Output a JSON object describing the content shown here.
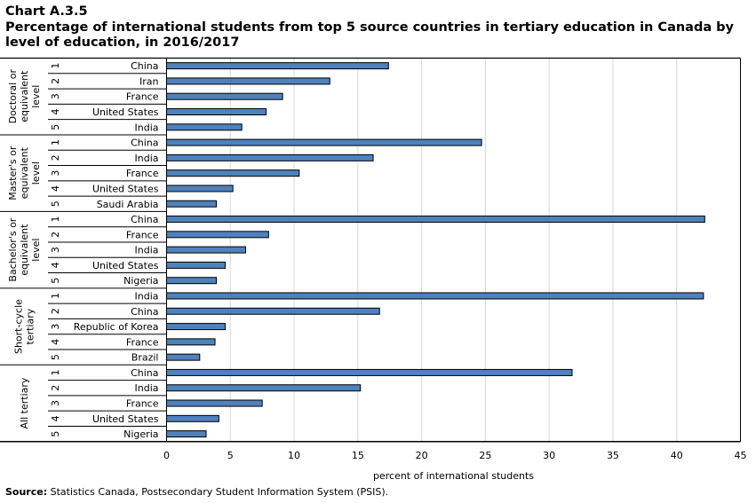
{
  "header": {
    "chart_id": "Chart A.3.5",
    "title": "Percentage of international  students from top 5 source countries in tertiary education in Canada by level of education, in 2016/2017"
  },
  "footer": {
    "source_label": "Source:",
    "source_text": "Statistics Canada, Postsecondary Student Information System (PSIS)."
  },
  "chart_data": {
    "type": "bar",
    "orientation": "horizontal",
    "title": "Percentage of international  students from top 5 source countries in tertiary education in Canada by level of education, in 2016/2017",
    "xlabel": "percent of international students",
    "ylabel": "",
    "xlim": [
      0,
      45
    ],
    "xticks": [
      0,
      5,
      10,
      15,
      20,
      25,
      30,
      35,
      40,
      45
    ],
    "grid": true,
    "bar_color": "#4f81bd",
    "groups": [
      {
        "label": "Doctoral or equivalent level",
        "label_lines": [
          "Doctoral or",
          "equivalent",
          "level"
        ],
        "items": [
          {
            "rank": "1",
            "country": "China",
            "value": 17.4
          },
          {
            "rank": "2",
            "country": "Iran",
            "value": 12.8
          },
          {
            "rank": "3",
            "country": "France",
            "value": 9.1
          },
          {
            "rank": "4",
            "country": "United States",
            "value": 7.8
          },
          {
            "rank": "5",
            "country": "India",
            "value": 5.9
          }
        ]
      },
      {
        "label": "Master's or equivalent level",
        "label_lines": [
          "Master's or",
          "equivalent",
          "level"
        ],
        "items": [
          {
            "rank": "1",
            "country": "China",
            "value": 24.7
          },
          {
            "rank": "2",
            "country": "India",
            "value": 16.2
          },
          {
            "rank": "3",
            "country": "France",
            "value": 10.4
          },
          {
            "rank": "4",
            "country": "United States",
            "value": 5.2
          },
          {
            "rank": "5",
            "country": "Saudi Arabia",
            "value": 3.9
          }
        ]
      },
      {
        "label": "Bachelor's or equivalent level",
        "label_lines": [
          "Bachelor's or",
          "equivalent",
          "level"
        ],
        "items": [
          {
            "rank": "1",
            "country": "China",
            "value": 42.2
          },
          {
            "rank": "2",
            "country": "France",
            "value": 8.0
          },
          {
            "rank": "3",
            "country": "India",
            "value": 6.2
          },
          {
            "rank": "4",
            "country": "United States",
            "value": 4.6
          },
          {
            "rank": "5",
            "country": "Nigeria",
            "value": 3.9
          }
        ]
      },
      {
        "label": "Short-cycle tertiary",
        "label_lines": [
          "Short-cycle",
          "tertiary"
        ],
        "items": [
          {
            "rank": "1",
            "country": "India",
            "value": 42.1
          },
          {
            "rank": "2",
            "country": "China",
            "value": 16.7
          },
          {
            "rank": "3",
            "country": "Republic of Korea",
            "value": 4.6
          },
          {
            "rank": "4",
            "country": "France",
            "value": 3.8
          },
          {
            "rank": "5",
            "country": "Brazil",
            "value": 2.6
          }
        ]
      },
      {
        "label": "All tertiary",
        "label_lines": [
          "All tertiary"
        ],
        "items": [
          {
            "rank": "1",
            "country": "China",
            "value": 31.8
          },
          {
            "rank": "2",
            "country": "India",
            "value": 15.2
          },
          {
            "rank": "3",
            "country": "France",
            "value": 7.5
          },
          {
            "rank": "4",
            "country": "United States",
            "value": 4.1
          },
          {
            "rank": "5",
            "country": "Nigeria",
            "value": 3.1
          }
        ]
      }
    ]
  }
}
